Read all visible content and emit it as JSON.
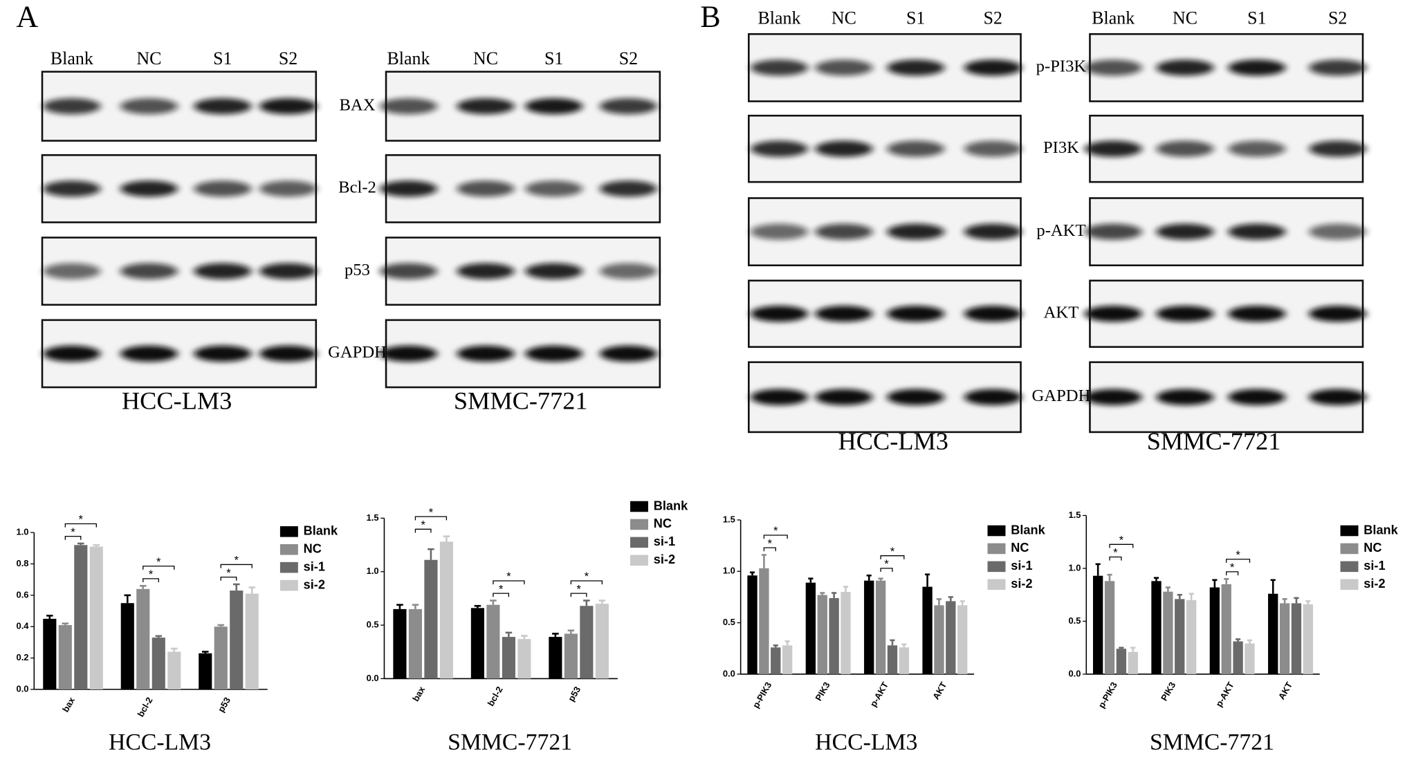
{
  "panel_labels": [
    "A",
    "B"
  ],
  "blots": [
    {
      "lanes": [
        "Blank",
        "NC",
        "S1",
        "S2"
      ],
      "proteins": [
        "BAX",
        "Bcl-2",
        "p53",
        "GAPDH"
      ],
      "cell_lines": [
        "HCC-LM3",
        "SMMC-7721"
      ]
    },
    {
      "lanes": [
        "Blank",
        "NC",
        "S1",
        "S2"
      ],
      "proteins": [
        "p-PI3K",
        "PI3K",
        "p-AKT",
        "AKT",
        "GAPDH"
      ],
      "cell_lines": [
        "HCC-LM3",
        "SMMC-7721"
      ]
    }
  ],
  "chart_data": [
    {
      "type": "bar",
      "title": "HCC-LM3",
      "categories": [
        "bax",
        "bcl-2",
        "p53"
      ],
      "ylim": [
        0,
        1
      ],
      "yticks": [
        {
          "value": 0,
          "label": "0.0"
        },
        0.2,
        0.4,
        0.6,
        0.8,
        {
          "value": 1,
          "label": "1.0"
        }
      ],
      "series": [
        {
          "name": "Blank",
          "color": "#000000",
          "values": [
            0.45,
            0.55,
            0.23
          ],
          "errors": [
            0.02,
            0.05,
            0.01
          ]
        },
        {
          "name": "NC",
          "color": "#8c8c8c",
          "values": [
            0.41,
            0.64,
            0.4
          ],
          "errors": [
            0.01,
            0.02,
            0.01
          ]
        },
        {
          "name": "si-1",
          "color": "#6a6a6a",
          "values": [
            0.92,
            0.33,
            0.63
          ],
          "errors": [
            0.01,
            0.01,
            0.04
          ]
        },
        {
          "name": "si-2",
          "color": "#c9c9c9",
          "values": [
            0.91,
            0.24,
            0.61
          ],
          "errors": [
            0.01,
            0.02,
            0.04
          ]
        }
      ],
      "brackets": [
        {
          "category": 0,
          "series": [
            1,
            2
          ],
          "label": "*"
        },
        {
          "category": 0,
          "series": [
            1,
            3
          ],
          "label": "*"
        },
        {
          "category": 1,
          "series": [
            1,
            2
          ],
          "label": "*"
        },
        {
          "category": 1,
          "series": [
            1,
            3
          ],
          "label": "*"
        },
        {
          "category": 2,
          "series": [
            1,
            2
          ],
          "label": "*"
        },
        {
          "category": 2,
          "series": [
            1,
            3
          ],
          "label": "*"
        }
      ]
    },
    {
      "type": "bar",
      "title": "SMMC-7721",
      "categories": [
        "bax",
        "bcl-2",
        "p53"
      ],
      "ylim": [
        0,
        1.5
      ],
      "yticks": [
        {
          "value": 0,
          "label": "0.0"
        },
        0.5,
        {
          "value": 1,
          "label": "1.0"
        },
        1.5
      ],
      "series": [
        {
          "name": "Blank",
          "color": "#000000",
          "values": [
            0.65,
            0.66,
            0.39
          ],
          "errors": [
            0.04,
            0.02,
            0.03
          ]
        },
        {
          "name": "NC",
          "color": "#8c8c8c",
          "values": [
            0.65,
            0.69,
            0.42
          ],
          "errors": [
            0.04,
            0.04,
            0.03
          ]
        },
        {
          "name": "si-1",
          "color": "#6a6a6a",
          "values": [
            1.11,
            0.39,
            0.68
          ],
          "errors": [
            0.1,
            0.04,
            0.05
          ]
        },
        {
          "name": "si-2",
          "color": "#c9c9c9",
          "values": [
            1.28,
            0.37,
            0.7
          ],
          "errors": [
            0.05,
            0.03,
            0.03
          ]
        }
      ],
      "brackets": [
        {
          "category": 0,
          "series": [
            1,
            2
          ],
          "label": "*"
        },
        {
          "category": 0,
          "series": [
            1,
            3
          ],
          "label": "*"
        },
        {
          "category": 1,
          "series": [
            1,
            2
          ],
          "label": "*"
        },
        {
          "category": 1,
          "series": [
            1,
            3
          ],
          "label": "*"
        },
        {
          "category": 2,
          "series": [
            1,
            2
          ],
          "label": "*"
        },
        {
          "category": 2,
          "series": [
            1,
            3
          ],
          "label": "*"
        }
      ]
    },
    {
      "type": "bar",
      "title": "HCC-LM3",
      "categories": [
        "p-PIK3",
        "PIK3",
        "p-AKT",
        "AKT"
      ],
      "ylim": [
        0,
        1.5
      ],
      "yticks": [
        {
          "value": 0,
          "label": "0.0"
        },
        0.5,
        {
          "value": 1,
          "label": "1.0"
        },
        1.5
      ],
      "series": [
        {
          "name": "Blank",
          "color": "#000000",
          "values": [
            0.96,
            0.89,
            0.91,
            0.85
          ],
          "errors": [
            0.03,
            0.04,
            0.05,
            0.12
          ]
        },
        {
          "name": "NC",
          "color": "#8c8c8c",
          "values": [
            1.03,
            0.77,
            0.91,
            0.67
          ],
          "errors": [
            0.13,
            0.02,
            0.02,
            0.06
          ]
        },
        {
          "name": "si-1",
          "color": "#6a6a6a",
          "values": [
            0.26,
            0.74,
            0.28,
            0.71
          ],
          "errors": [
            0.02,
            0.05,
            0.05,
            0.04
          ]
        },
        {
          "name": "si-2",
          "color": "#c9c9c9",
          "values": [
            0.28,
            0.8,
            0.26,
            0.67
          ],
          "errors": [
            0.04,
            0.05,
            0.03,
            0.04
          ]
        }
      ],
      "brackets": [
        {
          "category": 0,
          "series": [
            1,
            2
          ],
          "label": "*"
        },
        {
          "category": 0,
          "series": [
            1,
            3
          ],
          "label": "*"
        },
        {
          "category": 2,
          "series": [
            1,
            2
          ],
          "label": "*"
        },
        {
          "category": 2,
          "series": [
            1,
            3
          ],
          "label": "*"
        }
      ]
    },
    {
      "type": "bar",
      "title": "SMMC-7721",
      "categories": [
        "p-PIK3",
        "PIK3",
        "p-AKT",
        "AKT"
      ],
      "ylim": [
        0,
        1.5
      ],
      "yticks": [
        {
          "value": 0,
          "label": "0.0"
        },
        0.5,
        {
          "value": 1,
          "label": "1.0"
        },
        1.5
      ],
      "series": [
        {
          "name": "Blank",
          "color": "#000000",
          "values": [
            0.93,
            0.88,
            0.82,
            0.76
          ],
          "errors": [
            0.11,
            0.03,
            0.07,
            0.13
          ]
        },
        {
          "name": "NC",
          "color": "#8c8c8c",
          "values": [
            0.88,
            0.78,
            0.85,
            0.67
          ],
          "errors": [
            0.06,
            0.04,
            0.05,
            0.04
          ]
        },
        {
          "name": "si-1",
          "color": "#6a6a6a",
          "values": [
            0.24,
            0.71,
            0.31,
            0.67
          ],
          "errors": [
            0.01,
            0.04,
            0.02,
            0.05
          ]
        },
        {
          "name": "si-2",
          "color": "#c9c9c9",
          "values": [
            0.21,
            0.7,
            0.29,
            0.66
          ],
          "errors": [
            0.04,
            0.06,
            0.03,
            0.03
          ]
        }
      ],
      "brackets": [
        {
          "category": 0,
          "series": [
            1,
            2
          ],
          "label": "*"
        },
        {
          "category": 0,
          "series": [
            1,
            3
          ],
          "label": "*"
        },
        {
          "category": 2,
          "series": [
            1,
            2
          ],
          "label": "*"
        },
        {
          "category": 2,
          "series": [
            1,
            3
          ],
          "label": "*"
        }
      ]
    }
  ]
}
